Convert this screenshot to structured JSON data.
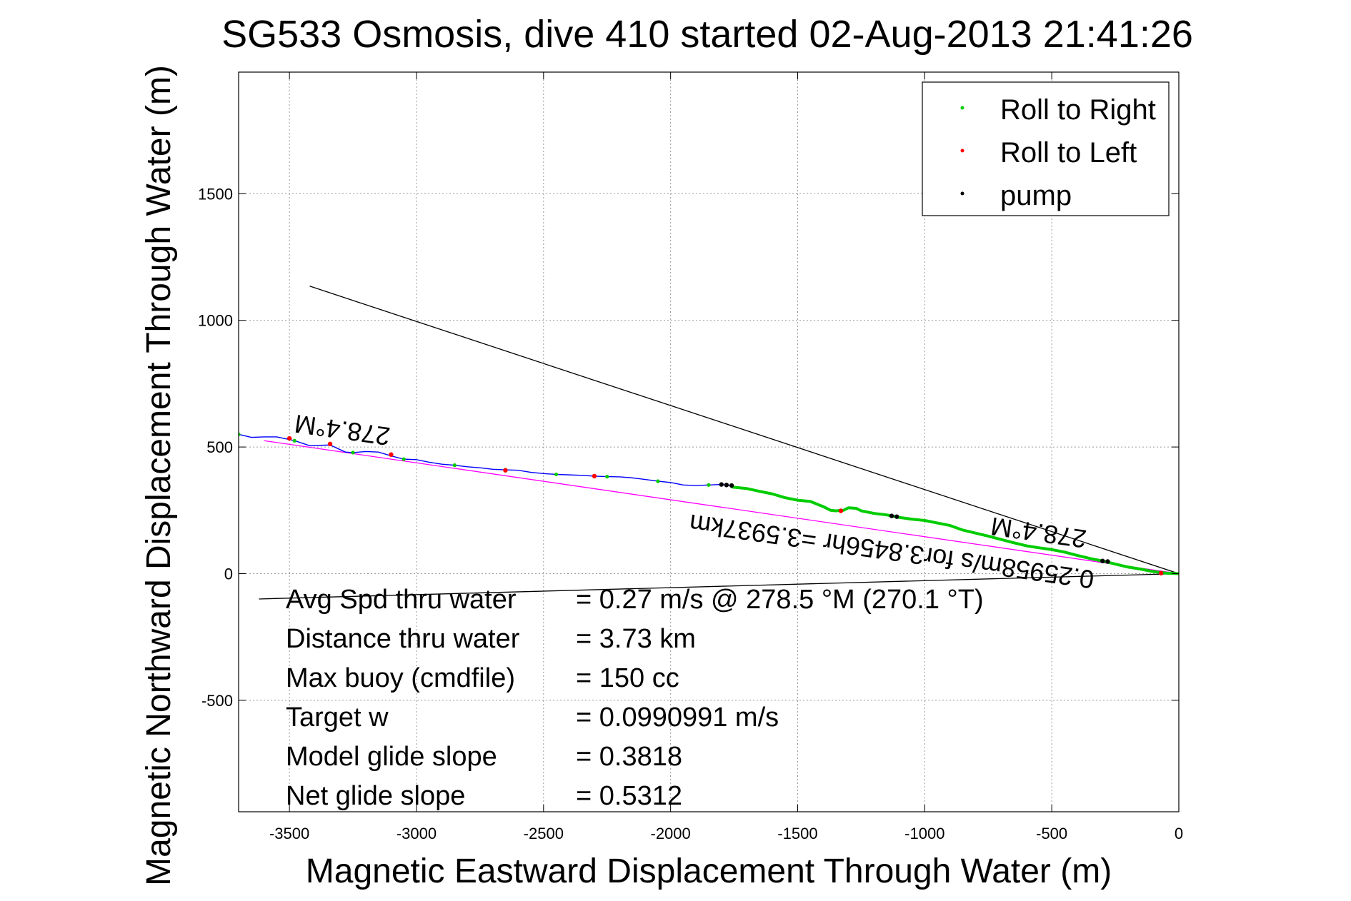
{
  "chart_data": {
    "type": "line",
    "title": "SG533 Osmosis, dive 410 started 02-Aug-2013 21:41:26",
    "xlabel": "Magnetic Eastward Displacement Through Water (m)",
    "ylabel": "Magnetic Northward Displacement Through Water (m)",
    "xlim": [
      -3700,
      0
    ],
    "ylim": [
      -940,
      1980
    ],
    "grid": true,
    "x_ticks": [
      -3500,
      -3000,
      -2500,
      -2000,
      -1500,
      -1000,
      -500,
      0
    ],
    "y_ticks": [
      -500,
      0,
      500,
      1000,
      1500
    ],
    "x_tick_labels": [
      "-3500",
      "-3000",
      "-2500",
      "-2000",
      "-1500",
      "-1000",
      "-500",
      "0"
    ],
    "y_tick_labels": [
      "-500",
      "0",
      "500",
      "1000",
      "1500"
    ],
    "legend_position": "top-right",
    "legend": [
      {
        "label": "Roll to Right",
        "color": "#00cc00"
      },
      {
        "label": "Roll to Left",
        "color": "#ff0000"
      },
      {
        "label": "pump",
        "color": "#000000"
      }
    ],
    "series": [
      {
        "color": "#0000ff",
        "x": [
          -3700,
          -3650,
          -3600,
          -3550,
          -3480,
          -3420,
          -3340,
          -3280,
          -3250,
          -3200,
          -3150,
          -3100,
          -3050,
          -3000,
          -2950,
          -2900,
          -2850,
          -2800,
          -2750,
          -2700,
          -2650,
          -2600,
          -2550,
          -2500,
          -2450,
          -2400,
          -2350,
          -2300,
          -2250,
          -2200,
          -2150,
          -2100,
          -2050,
          -2000,
          -1950,
          -1900,
          -1850,
          -1800,
          -1760
        ],
        "y": [
          550,
          538,
          540,
          540,
          525,
          505,
          508,
          480,
          478,
          482,
          480,
          465,
          452,
          450,
          440,
          432,
          428,
          422,
          418,
          412,
          410,
          408,
          400,
          395,
          392,
          390,
          388,
          385,
          383,
          382,
          378,
          372,
          365,
          360,
          350,
          348,
          350,
          352,
          348
        ]
      },
      {
        "name": "Roll to Right",
        "color": "#00cc00",
        "x": [
          -1760,
          -1700,
          -1650,
          -1600,
          -1550,
          -1500,
          -1450,
          -1400,
          -1370,
          -1350,
          -1320,
          -1300,
          -1270,
          -1250,
          -1200,
          -1150,
          -1100,
          -1050,
          -1000,
          -950,
          -900,
          -850,
          -800,
          -750,
          -700,
          -650,
          -600,
          -550,
          -500,
          -450,
          -400,
          -350,
          -300,
          -250,
          -200,
          -150,
          -100,
          -50,
          0
        ],
        "y": [
          342,
          336,
          325,
          315,
          300,
          290,
          285,
          265,
          250,
          248,
          250,
          260,
          258,
          248,
          238,
          232,
          222,
          215,
          210,
          200,
          190,
          172,
          160,
          148,
          135,
          122,
          110,
          102,
          95,
          85,
          72,
          60,
          50,
          38,
          26,
          18,
          8,
          2,
          0
        ]
      },
      {
        "name": "Roll to Left",
        "color": "#ff0000",
        "x": [
          -3500,
          -3340,
          -3100,
          -2650,
          -2300,
          -1330,
          -70
        ],
        "y": [
          534,
          512,
          470,
          408,
          385,
          248,
          2
        ]
      },
      {
        "name": "pump",
        "color": "#000000",
        "x": [
          -1800,
          -1780,
          -1760,
          -1130,
          -1110,
          -300,
          -280
        ],
        "y": [
          352,
          350,
          348,
          228,
          225,
          50,
          48
        ]
      }
    ],
    "reference_lines": [
      {
        "color": "#000000",
        "x": [
          -3420,
          0
        ],
        "y": [
          1135,
          0
        ]
      },
      {
        "color": "#000000",
        "x": [
          -3620,
          0
        ],
        "y": [
          -100,
          0
        ]
      },
      {
        "color": "#ff00ff",
        "x": [
          -3600,
          0
        ],
        "y": [
          525,
          0
        ]
      }
    ],
    "annotations": [
      {
        "text": "278.4°M",
        "x": -3100,
        "y": 575,
        "rotation_deg": 188,
        "anchor": "start"
      },
      {
        "text": "278.4°M",
        "x": -360,
        "y": 170,
        "rotation_deg": 188,
        "anchor": "start"
      },
      {
        "text": "0.25958m/s for3.8456hr =3.5937km",
        "x": -330,
        "y": 10,
        "rotation_deg": 188,
        "anchor": "start"
      }
    ],
    "stats": [
      {
        "label": "Avg Spd thru water",
        "value": "=  0.27 m/s @ 278.5 °M (270.1 °T)"
      },
      {
        "label": "Distance thru water",
        "value": "=  3.73 km"
      },
      {
        "label": "Max buoy (cmdfile)",
        "value": "= 150 cc"
      },
      {
        "label": "Target w",
        "value": "= 0.0990991 m/s"
      },
      {
        "label": "Model glide slope",
        "value": "= 0.3818"
      },
      {
        "label": "Net glide slope",
        "value": "= 0.5312"
      }
    ]
  }
}
